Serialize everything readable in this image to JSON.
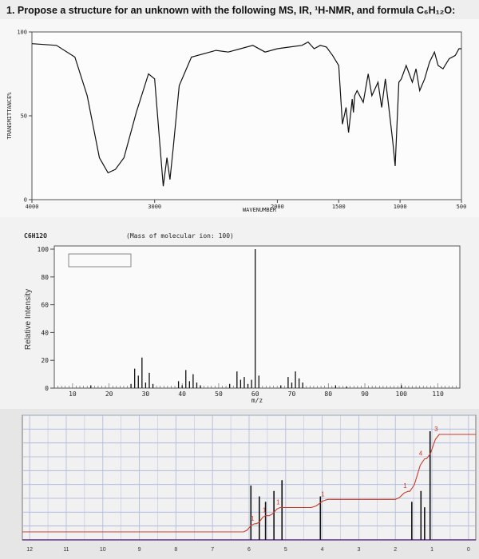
{
  "question": {
    "text": "1. Propose a structure for an unknown with the following MS, IR, ¹H-NMR, and formula C₆H₁₂O:"
  },
  "chart_data": [
    {
      "type": "line",
      "name": "ir",
      "ylabel": "TRANSMITTANCE%",
      "xlabel": "WAVENUMBER",
      "x_ticks": [
        4000,
        3000,
        2000,
        1500,
        1000,
        500
      ],
      "x_tick_labels": [
        "4000",
        "3000",
        "2000",
        "1500",
        "1000",
        "500"
      ],
      "y_ticks": [
        100,
        50,
        0
      ],
      "y_tick_labels": [
        "100",
        "50",
        "0"
      ],
      "xlim": [
        4000,
        500
      ],
      "ylim": [
        0,
        100
      ],
      "x": [
        4000,
        3800,
        3650,
        3550,
        3450,
        3380,
        3320,
        3250,
        3150,
        3050,
        3000,
        2960,
        2930,
        2900,
        2875,
        2850,
        2800,
        2700,
        2500,
        2400,
        2300,
        2200,
        2100,
        2000,
        1900,
        1800,
        1750,
        1700,
        1650,
        1600,
        1550,
        1500,
        1470,
        1440,
        1420,
        1390,
        1380,
        1370,
        1350,
        1300,
        1260,
        1230,
        1180,
        1150,
        1120,
        1100,
        1060,
        1040,
        1010,
        990,
        950,
        900,
        870,
        840,
        800,
        760,
        720,
        690,
        650,
        600,
        550,
        520,
        500
      ],
      "y": [
        93,
        92,
        85,
        62,
        25,
        16,
        18,
        25,
        52,
        75,
        72,
        35,
        8,
        25,
        12,
        30,
        68,
        85,
        89,
        88,
        90,
        92,
        88,
        90,
        91,
        92,
        94,
        90,
        92,
        91,
        86,
        80,
        45,
        55,
        40,
        60,
        52,
        62,
        65,
        58,
        75,
        62,
        70,
        55,
        72,
        60,
        35,
        20,
        70,
        72,
        80,
        70,
        78,
        65,
        72,
        82,
        88,
        80,
        78,
        84,
        86,
        90,
        90
      ]
    },
    {
      "type": "bar",
      "name": "ms",
      "ylabel": "Relative Intensity",
      "xlabel": "m/z",
      "header_left": "C6H12O",
      "header_right": "(Mass of molecular ion:     100)",
      "x_ticks": [
        10,
        20,
        30,
        40,
        50,
        60,
        70,
        80,
        90,
        100,
        110
      ],
      "x_tick_labels": [
        "10",
        "20",
        "30",
        "40",
        "50",
        "60",
        "70",
        "80",
        "90",
        "100",
        "110"
      ],
      "y_ticks": [
        0,
        20,
        40,
        60,
        80,
        100
      ],
      "y_tick_labels": [
        "0",
        "20",
        "40",
        "60",
        "80",
        "100"
      ],
      "xlim": [
        5,
        116
      ],
      "ylim": [
        0,
        100
      ],
      "x": [
        15,
        26,
        27,
        28,
        29,
        30,
        31,
        32,
        39,
        40,
        41,
        42,
        43,
        44,
        45,
        53,
        55,
        56,
        57,
        58,
        59,
        60,
        61,
        67,
        69,
        70,
        71,
        72,
        73,
        82,
        85,
        100
      ],
      "y": [
        2,
        3,
        14,
        9,
        22,
        4,
        11,
        3,
        5,
        2,
        13,
        5,
        10,
        4,
        2,
        3,
        12,
        6,
        8,
        3,
        6,
        100,
        9,
        2,
        8,
        4,
        12,
        7,
        4,
        2,
        1,
        2
      ]
    },
    {
      "type": "line",
      "name": "nmr",
      "x_ticks": [
        12,
        11,
        10,
        9,
        8,
        7,
        6,
        5,
        4,
        3,
        2,
        1,
        0
      ],
      "x_tick_labels": [
        "12",
        "11",
        "10",
        "9",
        "8",
        "7",
        "6",
        "5",
        "4",
        "3",
        "2",
        "1",
        "0"
      ],
      "xlim": [
        12.2,
        -0.2
      ],
      "ylim": [
        0,
        100
      ],
      "peaks": [
        {
          "ppm": 5.95,
          "height": 50
        },
        {
          "ppm": 5.72,
          "height": 40
        },
        {
          "ppm": 5.55,
          "height": 35
        },
        {
          "ppm": 5.32,
          "height": 45
        },
        {
          "ppm": 5.1,
          "height": 55
        },
        {
          "ppm": 4.05,
          "height": 40
        },
        {
          "ppm": 1.55,
          "height": 35
        },
        {
          "ppm": 1.3,
          "height": 45
        },
        {
          "ppm": 1.2,
          "height": 30
        },
        {
          "ppm": 1.05,
          "height": 100
        }
      ],
      "integrals": [
        {
          "label": "1",
          "ppm_start": 6.15,
          "ppm_end": 5.85
        },
        {
          "label": "1",
          "ppm_start": 5.8,
          "ppm_end": 5.55
        },
        {
          "label": "1",
          "ppm_start": 5.45,
          "ppm_end": 5.15
        },
        {
          "label": "1",
          "ppm_start": 4.3,
          "ppm_end": 3.85
        },
        {
          "label": "1",
          "ppm_start": 2.0,
          "ppm_end": 1.65
        },
        {
          "label": "4",
          "ppm_start": 1.6,
          "ppm_end": 1.2
        },
        {
          "label": "3",
          "ppm_start": 1.15,
          "ppm_end": 0.8
        }
      ]
    }
  ]
}
